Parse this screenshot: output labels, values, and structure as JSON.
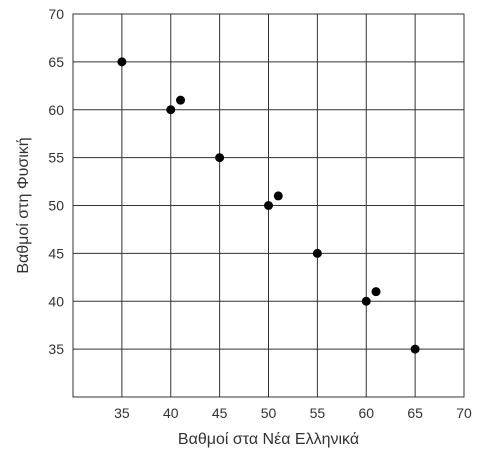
{
  "chart_data": {
    "type": "scatter",
    "title": "",
    "xlabel": "Βαθμοί στα Νέα Ελληνικά",
    "ylabel": "Βαθμοί στη Φυσική",
    "xlim": [
      30,
      70
    ],
    "ylim": [
      30,
      70
    ],
    "xticks": [
      35,
      40,
      45,
      50,
      55,
      60,
      65,
      70
    ],
    "yticks": [
      35,
      40,
      45,
      50,
      55,
      60,
      65,
      70
    ],
    "grid": true,
    "legend": "none",
    "colors": {
      "point": "#000000",
      "grid": "#333333",
      "axis": "#333333",
      "text": "#333333"
    },
    "points": [
      {
        "x": 35,
        "y": 65
      },
      {
        "x": 40,
        "y": 60
      },
      {
        "x": 41,
        "y": 61
      },
      {
        "x": 45,
        "y": 55
      },
      {
        "x": 50,
        "y": 50
      },
      {
        "x": 51,
        "y": 51
      },
      {
        "x": 55,
        "y": 45
      },
      {
        "x": 60,
        "y": 40
      },
      {
        "x": 61,
        "y": 41
      },
      {
        "x": 65,
        "y": 35
      }
    ]
  }
}
